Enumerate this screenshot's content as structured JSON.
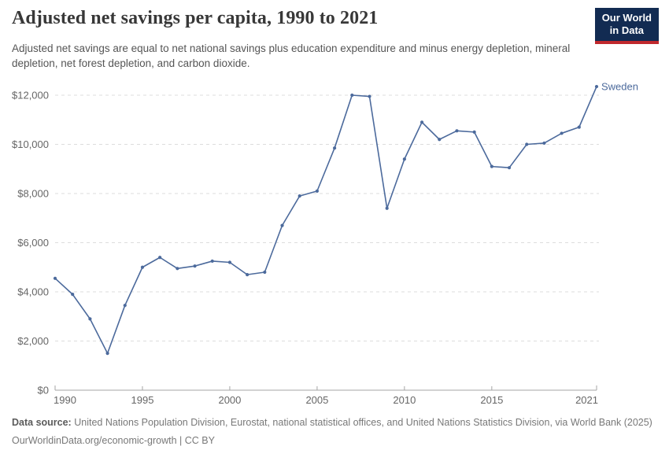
{
  "header": {
    "title": "Adjusted net savings per capita, 1990 to 2021",
    "subtitle": "Adjusted net savings are equal to net national savings plus education expenditure and minus energy depletion, mineral depletion, net forest depletion, and carbon dioxide.",
    "logo": {
      "line1": "Our World",
      "line2": "in Data",
      "bg_color": "#122B52",
      "stripe_color": "#C0282D"
    }
  },
  "chart_data": {
    "type": "line",
    "title": "Adjusted net savings per capita, 1990 to 2021",
    "xlabel": "",
    "ylabel": "",
    "grid": true,
    "legend_position": "end-of-line-label",
    "xlim": [
      1990,
      2021
    ],
    "ylim": [
      0,
      12500
    ],
    "x_ticks": [
      1990,
      1995,
      2000,
      2005,
      2010,
      2015,
      2021
    ],
    "y_ticks": [
      {
        "value": 0,
        "label": "$0"
      },
      {
        "value": 2000,
        "label": "$2,000"
      },
      {
        "value": 4000,
        "label": "$4,000"
      },
      {
        "value": 6000,
        "label": "$6,000"
      },
      {
        "value": 8000,
        "label": "$8,000"
      },
      {
        "value": 10000,
        "label": "$10,000"
      },
      {
        "value": 12000,
        "label": "$12,000"
      }
    ],
    "x": [
      1990,
      1991,
      1992,
      1993,
      1994,
      1995,
      1996,
      1997,
      1998,
      1999,
      2000,
      2001,
      2002,
      2003,
      2004,
      2005,
      2006,
      2007,
      2008,
      2009,
      2010,
      2011,
      2012,
      2013,
      2014,
      2015,
      2016,
      2017,
      2018,
      2019,
      2020,
      2021
    ],
    "series": [
      {
        "name": "Sweden",
        "color": "#4C6A9C",
        "values": [
          4550,
          3900,
          2900,
          1500,
          3450,
          5000,
          5400,
          4950,
          5050,
          5250,
          5200,
          4700,
          4800,
          6700,
          7900,
          8100,
          9850,
          12000,
          11950,
          7400,
          9400,
          10900,
          10200,
          10550,
          10500,
          9100,
          9050,
          10000,
          10050,
          10450,
          10700,
          12350
        ]
      }
    ]
  },
  "footer": {
    "source_label": "Data source:",
    "source_text": "United Nations Population Division, Eurostat, national statistical offices, and United Nations Statistics Division, via World Bank (2025)",
    "link_text": "OurWorldinData.org/economic-growth | CC BY"
  }
}
